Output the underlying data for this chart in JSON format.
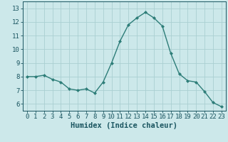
{
  "x": [
    0,
    1,
    2,
    3,
    4,
    5,
    6,
    7,
    8,
    9,
    10,
    11,
    12,
    13,
    14,
    15,
    16,
    17,
    18,
    19,
    20,
    21,
    22,
    23
  ],
  "y": [
    8.0,
    8.0,
    8.1,
    7.8,
    7.6,
    7.1,
    7.0,
    7.1,
    6.8,
    7.6,
    9.0,
    10.6,
    11.8,
    12.3,
    12.7,
    12.3,
    11.7,
    9.7,
    8.2,
    7.7,
    7.6,
    6.9,
    6.1,
    5.8
  ],
  "line_color": "#2d7d78",
  "marker": "D",
  "marker_size": 2.0,
  "bg_color": "#cce8ea",
  "grid_color": "#aacfd2",
  "xlabel": "Humidex (Indice chaleur)",
  "ylim": [
    5.5,
    13.5
  ],
  "yticks": [
    6,
    7,
    8,
    9,
    10,
    11,
    12,
    13
  ],
  "xticks": [
    0,
    1,
    2,
    3,
    4,
    5,
    6,
    7,
    8,
    9,
    10,
    11,
    12,
    13,
    14,
    15,
    16,
    17,
    18,
    19,
    20,
    21,
    22,
    23
  ],
  "font_color": "#1a5560",
  "tick_fontsize": 6.5,
  "label_fontsize": 7.5
}
